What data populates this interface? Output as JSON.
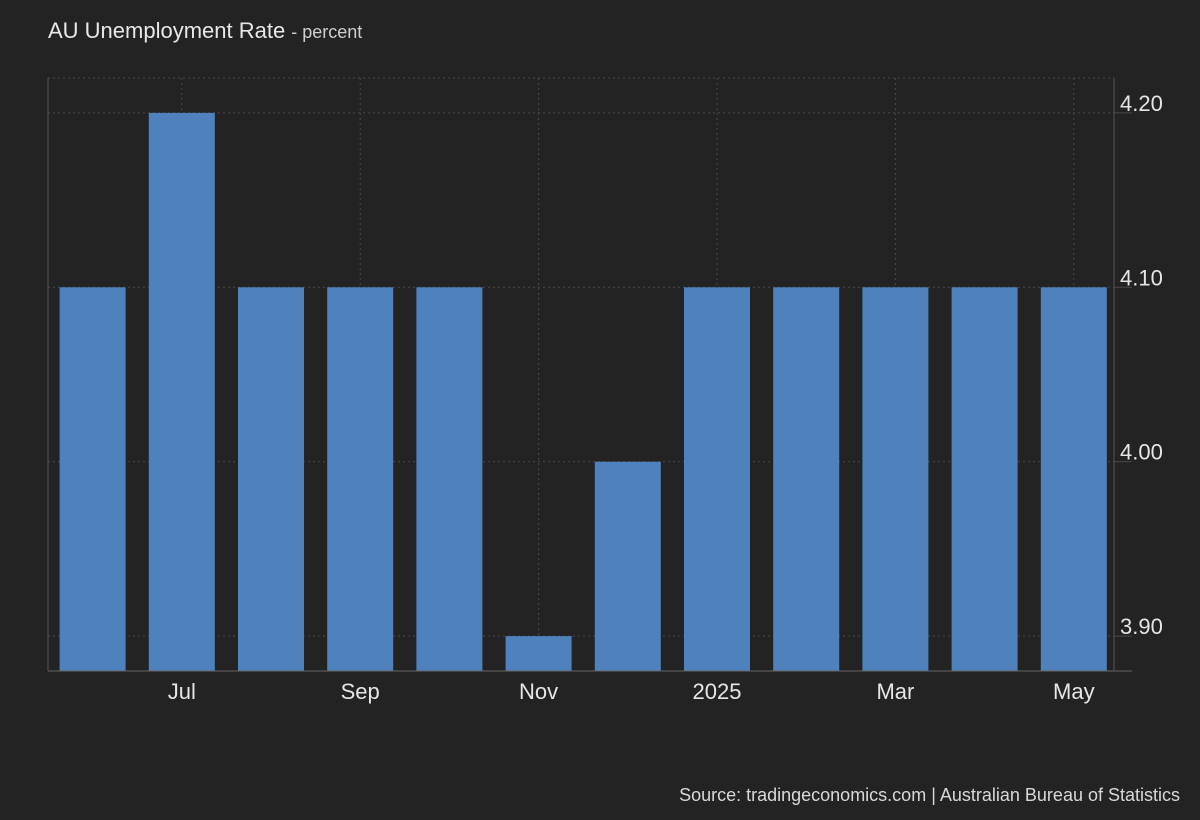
{
  "header": {
    "title": "AU Unemployment Rate",
    "subtitle": "- percent"
  },
  "source": "Source: tradingeconomics.com | Australian Bureau of Statistics",
  "colors": {
    "background": "#232323",
    "bar": "#4f81bd",
    "grid": "#4a4a4a",
    "text": "#e6e6e6"
  },
  "chart_data": {
    "type": "bar",
    "categories": [
      "2024-06",
      "2024-07",
      "2024-08",
      "2024-09",
      "2024-10",
      "2024-11",
      "2024-12",
      "2025-01",
      "2025-02",
      "2025-03",
      "2025-04",
      "2025-05"
    ],
    "values": [
      4.1,
      4.2,
      4.1,
      4.1,
      4.1,
      3.9,
      4.0,
      4.1,
      4.1,
      4.1,
      4.1,
      4.1
    ],
    "x_tick_labels": [
      {
        "category": "2024-07",
        "label": "Jul"
      },
      {
        "category": "2024-09",
        "label": "Sep"
      },
      {
        "category": "2024-11",
        "label": "Nov"
      },
      {
        "category": "2025-01",
        "label": "2025"
      },
      {
        "category": "2025-03",
        "label": "Mar"
      },
      {
        "category": "2025-05",
        "label": "May"
      }
    ],
    "y_ticks": [
      3.9,
      4.0,
      4.1,
      4.2
    ],
    "y_tick_labels": [
      "3.90",
      "4.00",
      "4.10",
      "4.20"
    ],
    "ylim": [
      3.88,
      4.22
    ],
    "y_axis_side": "right",
    "grid": true
  }
}
